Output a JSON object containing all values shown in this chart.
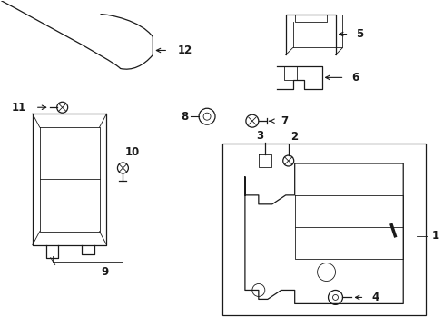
{
  "background_color": "#ffffff",
  "line_color": "#1a1a1a",
  "figsize": [
    4.89,
    3.6
  ],
  "dpi": 100,
  "label_fontsize": 8.5,
  "lw_main": 0.9,
  "lw_thin": 0.6,
  "lw_arrow": 0.8
}
